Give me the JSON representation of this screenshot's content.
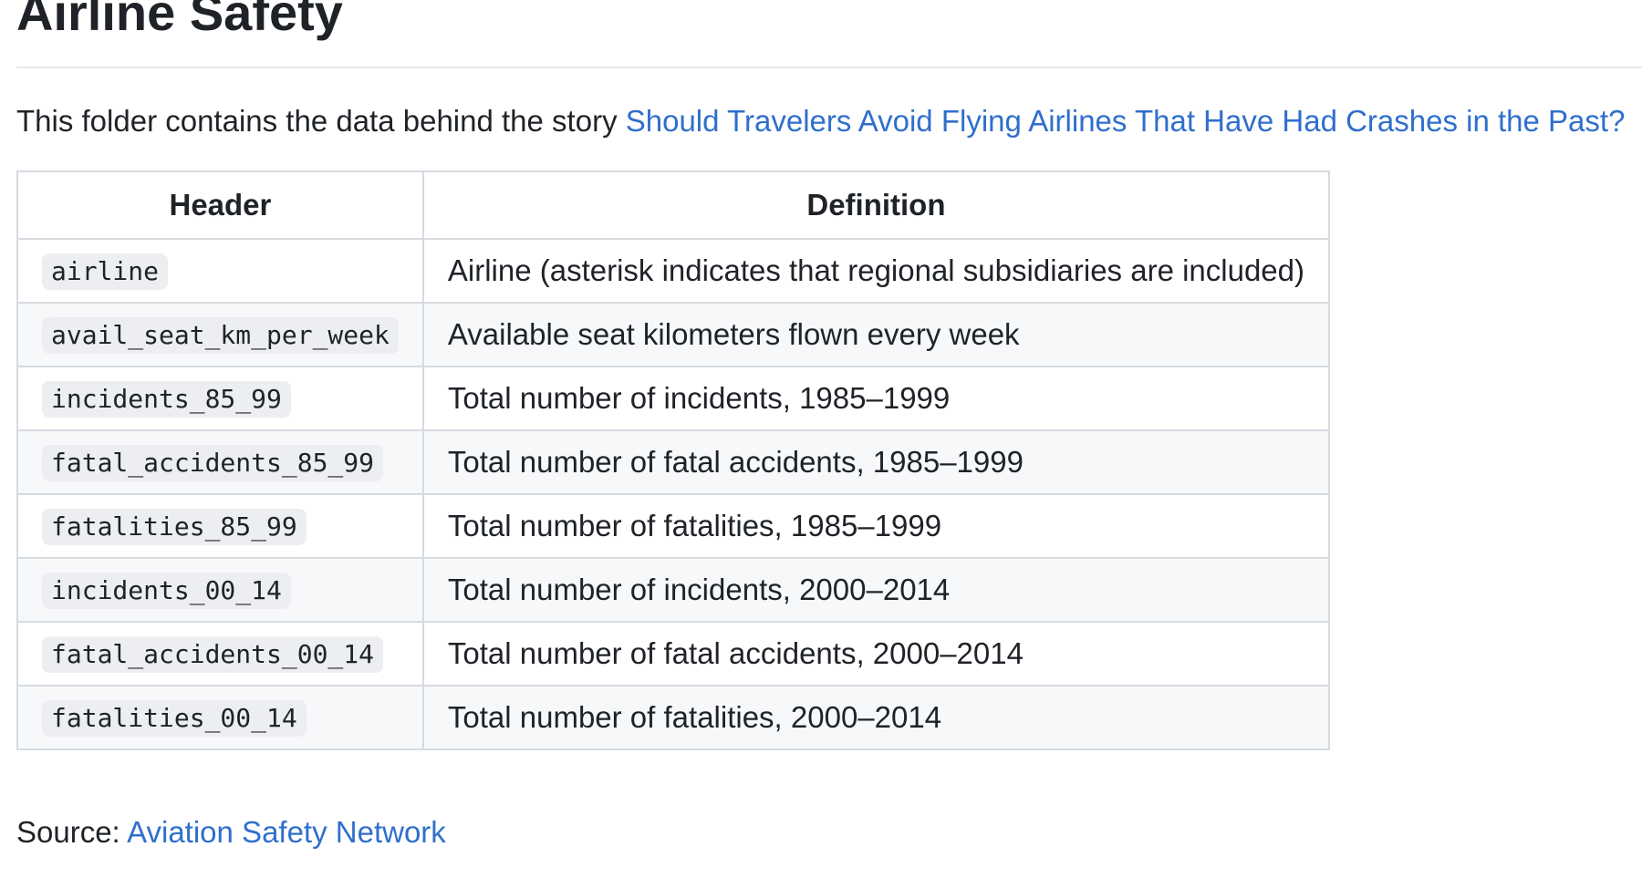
{
  "title": "Airline Safety",
  "intro": {
    "text": "This folder contains the data behind the story ",
    "link_text": "Should Travelers Avoid Flying Airlines That Have Had Crashes in the Past?"
  },
  "table": {
    "columns": [
      "Header",
      "Definition"
    ],
    "rows": [
      {
        "header": "airline",
        "definition": "Airline (asterisk indicates that regional subsidiaries are included)"
      },
      {
        "header": "avail_seat_km_per_week",
        "definition": "Available seat kilometers flown every week"
      },
      {
        "header": "incidents_85_99",
        "definition": "Total number of incidents, 1985–1999"
      },
      {
        "header": "fatal_accidents_85_99",
        "definition": "Total number of fatal accidents, 1985–1999"
      },
      {
        "header": "fatalities_85_99",
        "definition": "Total number of fatalities, 1985–1999"
      },
      {
        "header": "incidents_00_14",
        "definition": "Total number of incidents, 2000–2014"
      },
      {
        "header": "fatal_accidents_00_14",
        "definition": "Total number of fatal accidents, 2000–2014"
      },
      {
        "header": "fatalities_00_14",
        "definition": "Total number of fatalities, 2000–2014"
      }
    ]
  },
  "source": {
    "label": "Source: ",
    "link_text": "Aviation Safety Network"
  },
  "colors": {
    "link": "#2f6fcd",
    "text": "#1f2328",
    "border": "#d6dbe0",
    "stripe": "#f6f8fa"
  }
}
